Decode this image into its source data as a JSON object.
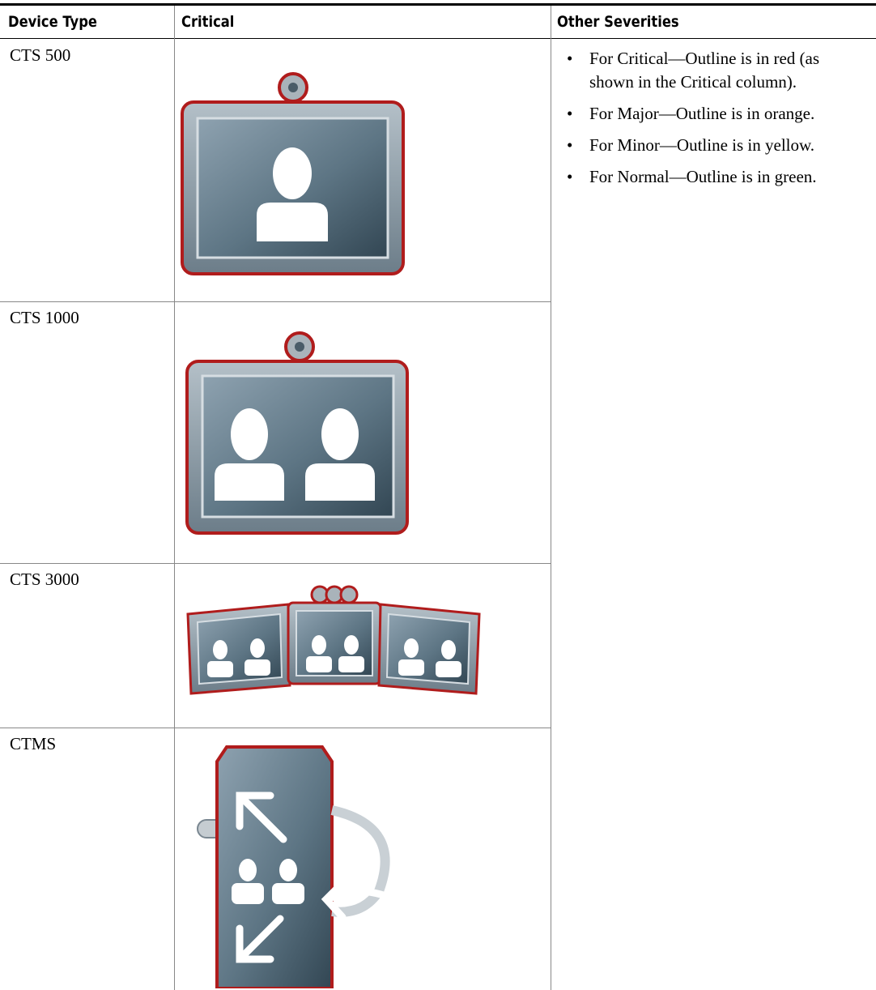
{
  "table": {
    "header": [
      "Device Type",
      "Critical",
      "Other Severities"
    ],
    "rows": [
      "CTS 500",
      "CTS 1000",
      "CTS 3000",
      "CTMS"
    ],
    "other_severities": [
      "For Critical—Outline is in red (as shown in the Critical column).",
      "For Major—Outline is in orange.",
      "For Minor—Outline is in yellow.",
      "For Normal—Outline is in green."
    ]
  }
}
